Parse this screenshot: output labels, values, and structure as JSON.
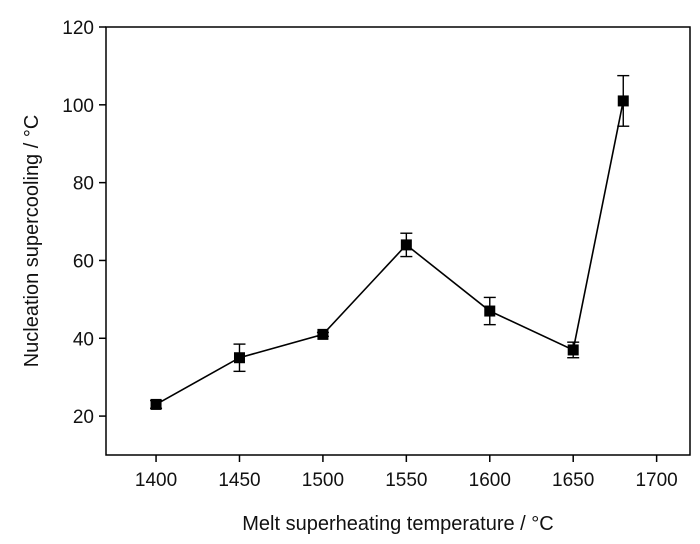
{
  "chart_data": {
    "type": "line",
    "xlabel": "Melt superheating temperature / °C",
    "ylabel": "Nucleation supercooling / °C",
    "xlim": [
      1370,
      1720
    ],
    "ylim": [
      10,
      120
    ],
    "xticks": [
      1400,
      1450,
      1500,
      1550,
      1600,
      1650,
      1700
    ],
    "yticks": [
      20,
      40,
      60,
      80,
      100,
      120
    ],
    "x": [
      1400,
      1450,
      1500,
      1550,
      1600,
      1650,
      1680
    ],
    "y": [
      23,
      35,
      41,
      64,
      47,
      37,
      101
    ],
    "yerr": [
      1,
      3.5,
      0.5,
      3,
      3.5,
      2,
      6.5
    ],
    "grid": false,
    "marker": "square",
    "color": "#000000"
  }
}
